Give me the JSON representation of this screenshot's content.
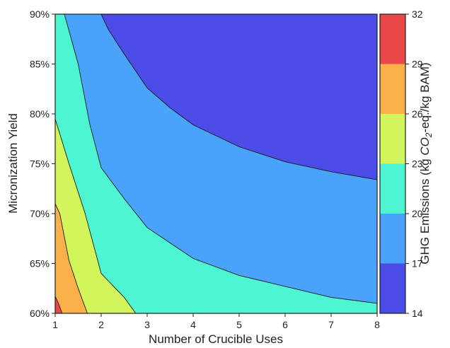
{
  "chart_data": {
    "type": "contour",
    "xlabel": "Number of Crucible Uses",
    "ylabel": "Micronization Yield",
    "colorbar_label_parts": [
      "GHG Emissions (kg ",
      "CO",
      "2",
      "-eq./kg BAM)"
    ],
    "xlim": [
      1,
      8
    ],
    "ylim": [
      60,
      90
    ],
    "xticks": [
      "1",
      "2",
      "3",
      "4",
      "5",
      "6",
      "7",
      "8"
    ],
    "yticks": [
      "60%",
      "65%",
      "70%",
      "75%",
      "80%",
      "85%",
      "90%"
    ],
    "colorbar_ticks": [
      "14",
      "17",
      "20",
      "23",
      "26",
      "29",
      "32"
    ],
    "contour_levels": [
      14,
      17,
      20,
      23,
      26,
      29,
      32
    ],
    "level_colors": [
      "#4b4be8",
      "#4aa3fa",
      "#4df5d2",
      "#d3f55c",
      "#fbb14a",
      "#e84848"
    ],
    "contour_lines": [
      {
        "level": 17,
        "points": [
          [
            2.0,
            90
          ],
          [
            2.15,
            88.5
          ],
          [
            2.5,
            86.0
          ],
          [
            3.0,
            82.6
          ],
          [
            3.5,
            80.6
          ],
          [
            4.0,
            78.9
          ],
          [
            5.0,
            76.7
          ],
          [
            6.0,
            75.2
          ],
          [
            7.0,
            74.2
          ],
          [
            8.0,
            73.4
          ]
        ]
      },
      {
        "level": 20,
        "points": [
          [
            1.2,
            90
          ],
          [
            1.5,
            85.0
          ],
          [
            1.75,
            79.0
          ],
          [
            2.0,
            74.6
          ],
          [
            2.5,
            71.5
          ],
          [
            3.0,
            68.6
          ],
          [
            4.0,
            65.5
          ],
          [
            5.0,
            63.8
          ],
          [
            6.0,
            62.7
          ],
          [
            7.0,
            61.6
          ],
          [
            8.0,
            61.0
          ]
        ]
      },
      {
        "level": 23,
        "points": [
          [
            1.0,
            79.5
          ],
          [
            1.3,
            75.0
          ],
          [
            1.65,
            70.0
          ],
          [
            2.0,
            64.0
          ],
          [
            2.5,
            61.6
          ],
          [
            2.75,
            60
          ]
        ]
      },
      {
        "level": 26,
        "points": [
          [
            1.0,
            71.0
          ],
          [
            1.1,
            70.0
          ],
          [
            1.3,
            65.3
          ],
          [
            1.5,
            62.5
          ],
          [
            1.7,
            60
          ]
        ]
      },
      {
        "level": 29,
        "points": [
          [
            1.0,
            61.7
          ],
          [
            1.07,
            61.0
          ],
          [
            1.15,
            60
          ]
        ]
      }
    ]
  }
}
